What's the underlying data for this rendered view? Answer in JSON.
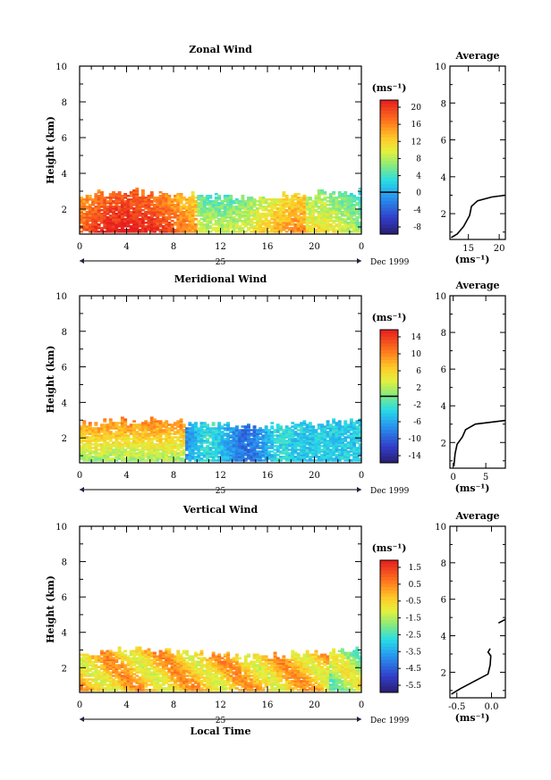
{
  "chart_data": [
    {
      "type": "heatmap",
      "title": "Zonal Wind",
      "ylabel": "Height (km)",
      "yticks": [
        "2",
        "4",
        "6",
        "8",
        "10"
      ],
      "ylim": [
        0.6,
        10
      ],
      "xticks": [
        "0",
        "4",
        "8",
        "12",
        "16",
        "20",
        "0"
      ],
      "xlim": [
        0,
        24
      ],
      "date_axis": {
        "day": "25",
        "month": "Dec 1999"
      },
      "colorbar": {
        "unit": "(ms⁻¹)",
        "ticks": [
          "20",
          "16",
          "12",
          "8",
          "4",
          "0",
          "-4",
          "-8"
        ],
        "min": -10,
        "max": 22,
        "zero_line": 0
      },
      "field": {
        "kind": "zonal",
        "height_range_km": [
          0.7,
          3.0
        ],
        "typical_ms": [
          10,
          20
        ]
      },
      "average_profile": {
        "title": "Average",
        "xlabel": "(ms⁻¹)",
        "xticks": [
          "15",
          "20"
        ],
        "xlim": [
          12,
          21
        ],
        "yticks": [
          "2",
          "4",
          "6",
          "8",
          "10"
        ],
        "ylim": [
          0.6,
          10
        ],
        "segments": [
          [
            [
              12.2,
              0.7
            ],
            [
              13.2,
              0.9
            ],
            [
              14.2,
              1.3
            ],
            [
              15.2,
              1.9
            ],
            [
              15.5,
              2.4
            ],
            [
              16.5,
              2.7
            ],
            [
              18.8,
              2.9
            ],
            [
              21,
              3.0
            ]
          ]
        ]
      }
    },
    {
      "type": "heatmap",
      "title": "Meridional Wind",
      "ylabel": "Height (km)",
      "yticks": [
        "2",
        "4",
        "6",
        "8",
        "10"
      ],
      "ylim": [
        0.6,
        10
      ],
      "xticks": [
        "0",
        "4",
        "8",
        "12",
        "16",
        "20",
        "0"
      ],
      "xlim": [
        0,
        24
      ],
      "date_axis": {
        "day": "25",
        "month": "Dec 1999"
      },
      "colorbar": {
        "unit": "(ms⁻¹)",
        "ticks": [
          "14",
          "10",
          "6",
          "2",
          "-2",
          "-6",
          "-10",
          "-14"
        ],
        "min": -16,
        "max": 16,
        "zero_line": 0
      },
      "field": {
        "kind": "meridional",
        "height_range_km": [
          0.7,
          3.0
        ],
        "typical_ms": [
          -12,
          12
        ]
      },
      "average_profile": {
        "title": "Average",
        "xlabel": "(ms⁻¹)",
        "xticks": [
          "0",
          "5"
        ],
        "xlim": [
          -0.5,
          8
        ],
        "yticks": [
          "2",
          "4",
          "6",
          "8",
          "10"
        ],
        "ylim": [
          0.6,
          10
        ],
        "segments": [
          [
            [
              0.1,
              0.7
            ],
            [
              0.3,
              1.4
            ],
            [
              0.6,
              1.9
            ],
            [
              1.4,
              2.3
            ],
            [
              1.9,
              2.7
            ],
            [
              3.4,
              3.0
            ],
            [
              8,
              3.2
            ]
          ]
        ]
      }
    },
    {
      "type": "heatmap",
      "title": "Vertical Wind",
      "ylabel": "Height (km)",
      "yticks": [
        "2",
        "4",
        "6",
        "8",
        "10"
      ],
      "ylim": [
        0.6,
        10
      ],
      "xticks": [
        "0",
        "4",
        "8",
        "12",
        "16",
        "20",
        "0"
      ],
      "xlim": [
        0,
        24
      ],
      "xlabel": "Local Time",
      "date_axis": {
        "day": "25",
        "month": "Dec 1999"
      },
      "colorbar": {
        "unit": "(ms⁻¹)",
        "ticks": [
          "1.5",
          "0.5",
          "-0.5",
          "-1.5",
          "-2.5",
          "-3.5",
          "-4.5",
          "-5.5"
        ],
        "min": -6,
        "max": 2
      },
      "field": {
        "kind": "vertical",
        "height_range_km": [
          0.7,
          3.0
        ],
        "typical_ms": [
          -2.5,
          1.0
        ]
      },
      "average_profile": {
        "title": "Average",
        "xlabel": "(ms⁻¹)",
        "xticks": [
          "-0.5",
          "0.0"
        ],
        "xlim": [
          -0.6,
          0.2
        ],
        "yticks": [
          "2",
          "4",
          "6",
          "8",
          "10"
        ],
        "ylim": [
          0.6,
          10
        ],
        "segments": [
          [
            [
              -0.58,
              0.8
            ],
            [
              -0.45,
              1.1
            ],
            [
              -0.25,
              1.5
            ],
            [
              -0.05,
              1.9
            ],
            [
              -0.02,
              2.4
            ],
            [
              -0.01,
              2.9
            ],
            [
              -0.05,
              3.1
            ],
            [
              -0.02,
              3.3
            ]
          ],
          [
            [
              0.1,
              4.7
            ],
            [
              0.2,
              4.9
            ]
          ]
        ]
      }
    }
  ]
}
